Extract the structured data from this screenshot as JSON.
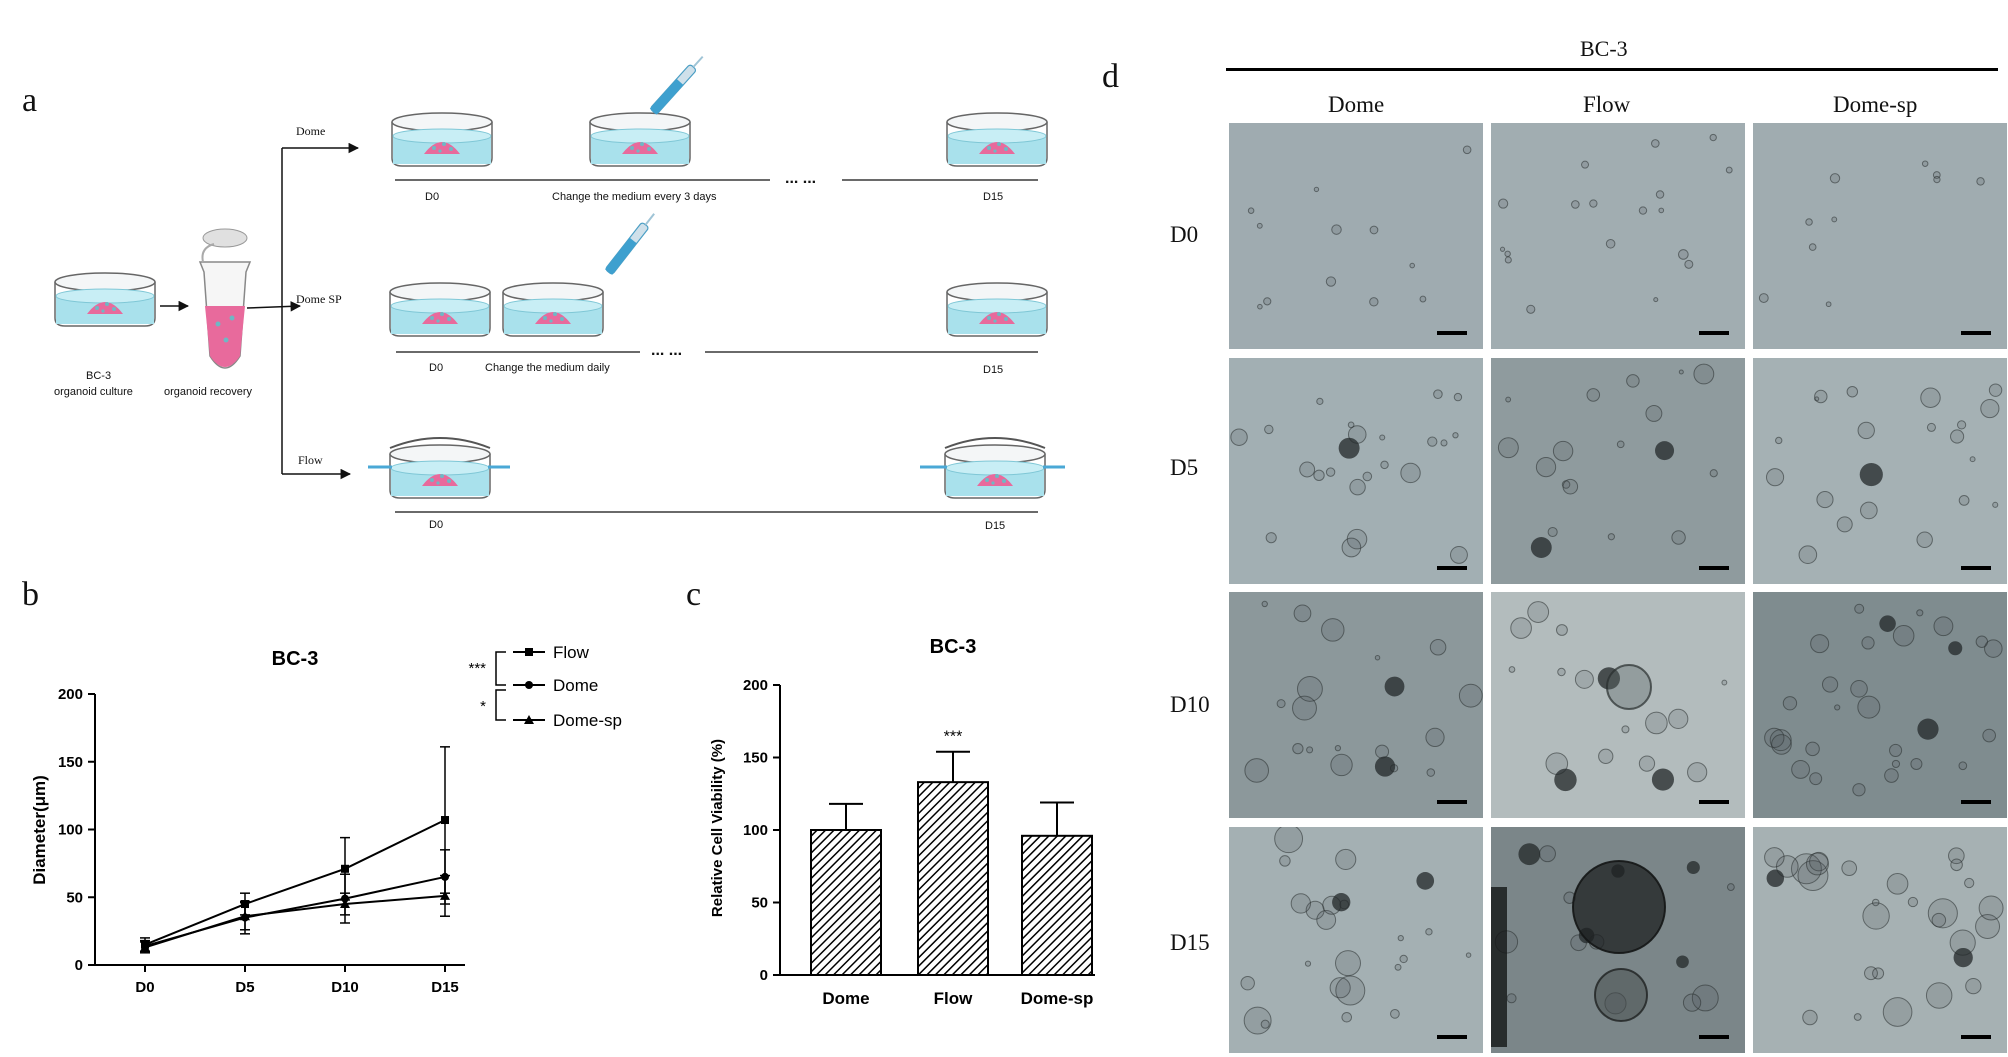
{
  "panels": {
    "a": "a",
    "b": "b",
    "c": "c",
    "d": "d"
  },
  "schematic": {
    "source_label": "BC-3",
    "source_sublabel": "organoid culture",
    "recovery_label": "organoid recovery",
    "rows": [
      {
        "branch": "Dome",
        "start": "D0",
        "note": "Change the medium every 3 days",
        "dots": "... ...",
        "end": "D15"
      },
      {
        "branch": "Dome SP",
        "start": "D0",
        "note": "Change the medium daily",
        "dots": "... ...",
        "end": "D15"
      },
      {
        "branch": "Flow",
        "start": "D0",
        "note": "",
        "dots": "",
        "end": "D15"
      }
    ]
  },
  "line_chart": {
    "title": "BC-3",
    "ylabel": "Diameter(μm)",
    "yticks": [
      "0",
      "50",
      "100",
      "150",
      "200"
    ],
    "xticks": [
      "D0",
      "D5",
      "D10",
      "D15"
    ],
    "legend": [
      "Flow",
      "Dome",
      "Dome-sp"
    ],
    "sig": [
      "***",
      "*"
    ]
  },
  "bar_chart": {
    "title": "BC-3",
    "ylabel": "Relative Cell Viability (%)",
    "yticks": [
      "0",
      "50",
      "100",
      "150",
      "200"
    ],
    "categories": [
      "Dome",
      "Flow",
      "Dome-sp"
    ],
    "sig": "***"
  },
  "microscopy": {
    "group_label": "BC-3",
    "columns": [
      "Dome",
      "Flow",
      "Dome-sp"
    ],
    "rows": [
      "D0",
      "D5",
      "D10",
      "D15"
    ]
  },
  "chart_data": [
    {
      "type": "line",
      "title": "BC-3",
      "xlabel": "",
      "ylabel": "Diameter(μm)",
      "x": [
        "D0",
        "D5",
        "D10",
        "D15"
      ],
      "ylim": [
        0,
        200
      ],
      "series": [
        {
          "name": "Flow",
          "marker": "square",
          "values": [
            15,
            45,
            71,
            107
          ],
          "errors": [
            5,
            8,
            23,
            54
          ]
        },
        {
          "name": "Dome",
          "marker": "circle",
          "values": [
            14,
            35,
            49,
            65
          ],
          "errors": [
            4,
            12,
            18,
            20
          ]
        },
        {
          "name": "Dome-sp",
          "marker": "triangle",
          "values": [
            13,
            36,
            45,
            51
          ],
          "errors": [
            4,
            10,
            8,
            15
          ]
        }
      ],
      "legend": "top-right"
    },
    {
      "type": "bar",
      "title": "BC-3",
      "ylabel": "Relative Cell Viability (%)",
      "categories": [
        "Dome",
        "Flow",
        "Dome-sp"
      ],
      "values": [
        100,
        133,
        96
      ],
      "errors": [
        18,
        21,
        23
      ],
      "ylim": [
        0,
        200
      ],
      "annotation": {
        "category": "Flow",
        "text": "***"
      }
    }
  ]
}
